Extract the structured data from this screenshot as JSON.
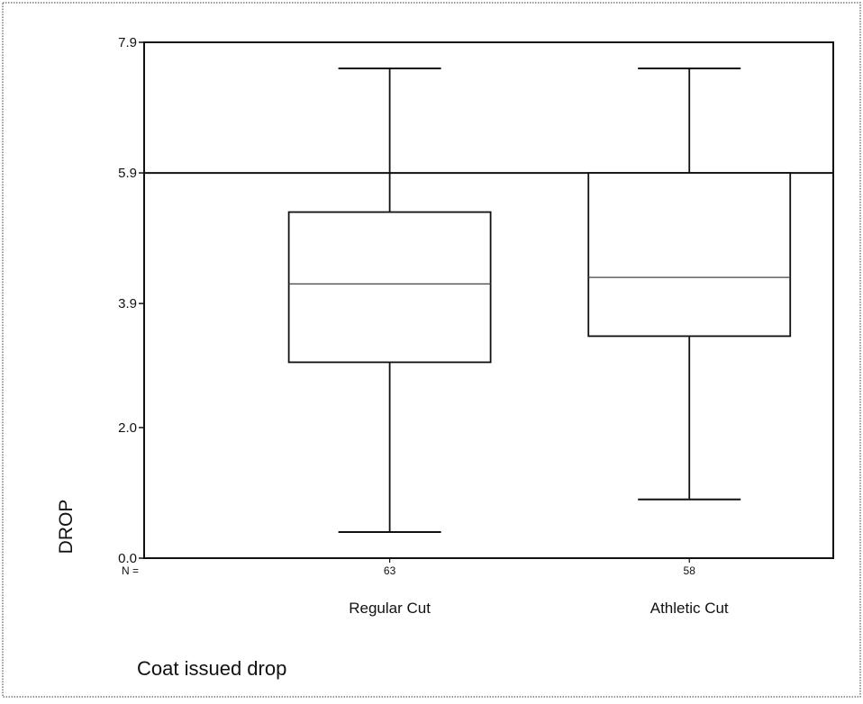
{
  "chart_data": {
    "type": "boxplot",
    "title": "",
    "ylabel": "DROP",
    "xlabel": "",
    "caption": "Coat issued drop",
    "ylim": [
      0,
      7.9
    ],
    "yticks": [
      {
        "value": 0.0,
        "label": "0.0"
      },
      {
        "value": 2.0,
        "label": "2.0"
      },
      {
        "value": 3.9,
        "label": "3.9"
      },
      {
        "value": 5.9,
        "label": "5.9"
      },
      {
        "value": 7.9,
        "label": "7.9"
      }
    ],
    "reference_line": {
      "y": 5.9
    },
    "n_prefix": "N =",
    "groups": [
      {
        "category": "Regular Cut",
        "n": "63",
        "whisker_low": 0.4,
        "q1": 3.0,
        "median": 4.2,
        "q3": 5.3,
        "whisker_high": 7.5
      },
      {
        "category": "Athletic Cut",
        "n": "58",
        "whisker_low": 0.9,
        "q1": 3.4,
        "median": 4.3,
        "q3": 5.9,
        "whisker_high": 7.5
      }
    ],
    "grid": false,
    "legend": "none"
  }
}
